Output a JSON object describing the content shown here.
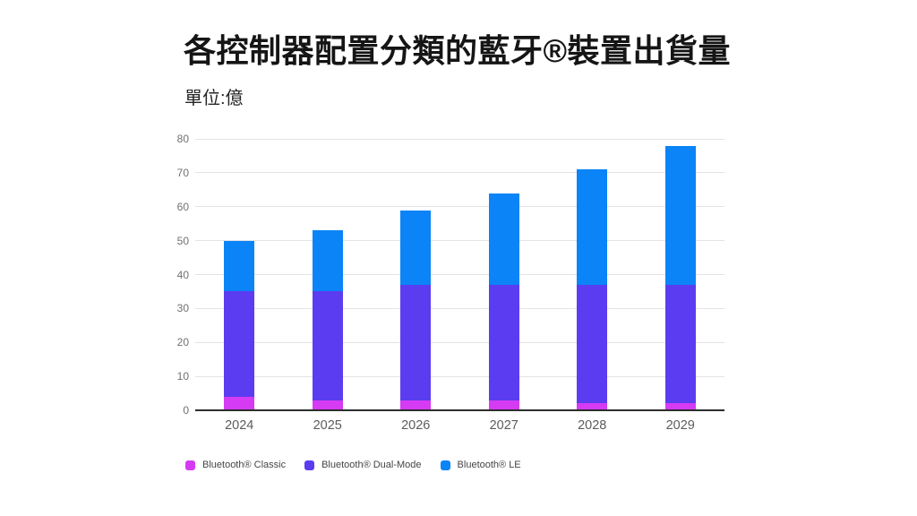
{
  "chart_data": {
    "type": "bar",
    "stacked": true,
    "title": "各控制器配置分類的藍牙®裝置出貨量",
    "unit_label": "單位:億",
    "categories": [
      "2024",
      "2025",
      "2026",
      "2027",
      "2028",
      "2029"
    ],
    "series": [
      {
        "name": "Bluetooth® Classic",
        "color": "#d43bf2",
        "values": [
          4,
          3,
          3,
          3,
          2,
          2
        ]
      },
      {
        "name": "Bluetooth® Dual-Mode",
        "color": "#5b3cf0",
        "values": [
          31,
          32,
          34,
          34,
          35,
          35
        ]
      },
      {
        "name": "Bluetooth® LE",
        "color": "#0a84f7",
        "values": [
          15,
          18,
          22,
          27,
          34,
          41
        ]
      }
    ],
    "stack_totals": [
      50,
      53,
      59,
      64,
      71,
      78
    ],
    "ylim": [
      0,
      80
    ],
    "yticks": [
      0,
      10,
      20,
      30,
      40,
      50,
      60,
      70,
      80
    ],
    "xlabel": "",
    "ylabel": "",
    "grid": "horizontal-only",
    "legend_position": "bottom-left",
    "colors": {
      "background": "#ffffff",
      "gridline": "#e3e3e3",
      "baseline": "#2e2e2e",
      "y_tick_text": "#707070",
      "x_tick_text": "#5c5c5c",
      "title_text": "#151515",
      "legend_text": "#454545"
    }
  }
}
